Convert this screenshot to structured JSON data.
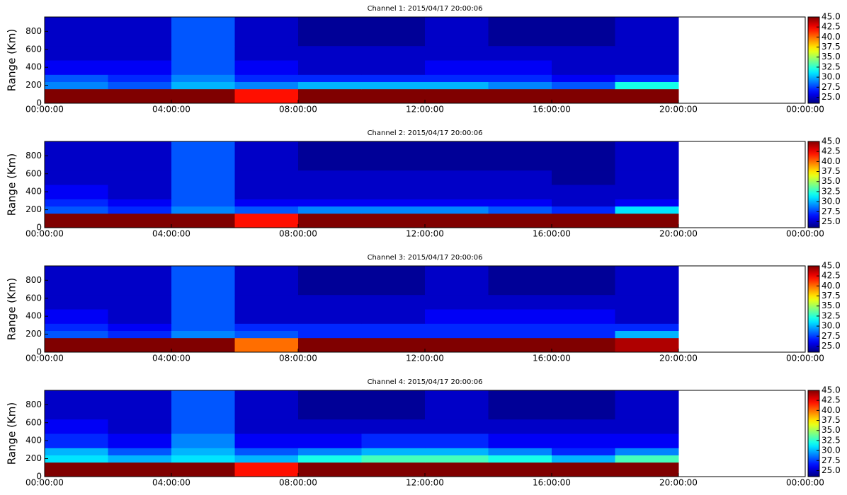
{
  "chart_data": [
    {
      "type": "heatmap",
      "title": "Channel 1: 2015/04/17 20:00:06",
      "ylabel": "Range (Km)",
      "colormap": "jet",
      "xbins": [
        0,
        2,
        4,
        6,
        8,
        10,
        12,
        14,
        16,
        18,
        20
      ],
      "ybins": [
        0,
        160,
        240,
        320,
        480,
        640,
        960
      ],
      "values": [
        [
          45,
          45,
          45,
          42,
          45,
          45,
          45,
          45,
          45,
          45
        ],
        [
          29,
          28,
          30,
          29,
          30,
          30,
          30,
          29,
          28,
          32
        ],
        [
          28,
          27,
          29,
          27,
          27,
          27,
          27,
          27,
          26,
          27
        ],
        [
          26,
          26,
          28,
          26,
          25,
          25,
          26,
          26,
          25,
          25
        ],
        [
          25,
          25,
          28,
          25,
          25,
          25,
          25,
          25,
          25,
          25
        ],
        [
          25,
          25,
          28,
          25,
          24,
          24,
          25,
          24,
          24,
          25
        ]
      ],
      "xlim": [
        0,
        24
      ],
      "xticks": [
        {
          "value": 0,
          "label": "00:00:00"
        },
        {
          "value": 4,
          "label": "04:00:00"
        },
        {
          "value": 8,
          "label": "08:00:00"
        },
        {
          "value": 12,
          "label": "12:00:00"
        },
        {
          "value": 16,
          "label": "16:00:00"
        },
        {
          "value": 20,
          "label": "20:00:00"
        },
        {
          "value": 24,
          "label": "00:00:00"
        }
      ],
      "ylim": [
        0,
        960
      ],
      "yticks": [
        0,
        200,
        400,
        600,
        800
      ],
      "clim": [
        23.5,
        45
      ],
      "cticks": [
        {
          "value": 25,
          "label": "25.0"
        },
        {
          "value": 27.5,
          "label": "27.5"
        },
        {
          "value": 30,
          "label": "30.0"
        },
        {
          "value": 32.5,
          "label": "32.5"
        },
        {
          "value": 35,
          "label": "35.0"
        },
        {
          "value": 37.5,
          "label": "37.5"
        },
        {
          "value": 40,
          "label": "40.0"
        },
        {
          "value": 42.5,
          "label": "42.5"
        },
        {
          "value": 45,
          "label": "45.0"
        }
      ]
    },
    {
      "type": "heatmap",
      "title": "Channel 2: 2015/04/17 20:00:06",
      "ylabel": "Range (Km)",
      "colormap": "jet",
      "xbins": [
        0,
        2,
        4,
        6,
        8,
        10,
        12,
        14,
        16,
        18,
        20
      ],
      "ybins": [
        0,
        160,
        240,
        320,
        480,
        640,
        960
      ],
      "values": [
        [
          45,
          45,
          45,
          42,
          45,
          45,
          45,
          45,
          45,
          45
        ],
        [
          28,
          27,
          29,
          28,
          29,
          29,
          29,
          28,
          27,
          31
        ],
        [
          27,
          26,
          28,
          26,
          26,
          26,
          26,
          26,
          25,
          26
        ],
        [
          26,
          25,
          28,
          25,
          25,
          25,
          25,
          25,
          25,
          25
        ],
        [
          25,
          25,
          28,
          25,
          25,
          25,
          25,
          25,
          24,
          25
        ],
        [
          25,
          25,
          28,
          25,
          24,
          24,
          24,
          24,
          24,
          25
        ]
      ],
      "xlim": [
        0,
        24
      ],
      "xticks": [
        {
          "value": 0,
          "label": "00:00:00"
        },
        {
          "value": 4,
          "label": "04:00:00"
        },
        {
          "value": 8,
          "label": "08:00:00"
        },
        {
          "value": 12,
          "label": "12:00:00"
        },
        {
          "value": 16,
          "label": "16:00:00"
        },
        {
          "value": 20,
          "label": "20:00:00"
        },
        {
          "value": 24,
          "label": "00:00:00"
        }
      ],
      "ylim": [
        0,
        960
      ],
      "yticks": [
        0,
        200,
        400,
        600,
        800
      ],
      "clim": [
        23.5,
        45
      ],
      "cticks": [
        {
          "value": 25,
          "label": "25.0"
        },
        {
          "value": 27.5,
          "label": "27.5"
        },
        {
          "value": 30,
          "label": "30.0"
        },
        {
          "value": 32.5,
          "label": "32.5"
        },
        {
          "value": 35,
          "label": "35.0"
        },
        {
          "value": 37.5,
          "label": "37.5"
        },
        {
          "value": 40,
          "label": "40.0"
        },
        {
          "value": 42.5,
          "label": "42.5"
        },
        {
          "value": 45,
          "label": "45.0"
        }
      ]
    },
    {
      "type": "heatmap",
      "title": "Channel 3: 2015/04/17 20:00:06",
      "ylabel": "Range (Km)",
      "colormap": "jet",
      "xbins": [
        0,
        2,
        4,
        6,
        8,
        10,
        12,
        14,
        16,
        18,
        20
      ],
      "ybins": [
        0,
        160,
        240,
        320,
        480,
        640,
        960
      ],
      "values": [
        [
          45,
          45,
          45,
          40,
          45,
          45,
          45,
          45,
          45,
          44
        ],
        [
          28,
          27,
          29,
          28,
          27,
          27,
          27,
          27,
          27,
          30
        ],
        [
          27,
          26,
          28,
          27,
          27,
          27,
          27,
          27,
          27,
          27
        ],
        [
          26,
          25,
          28,
          25,
          25,
          25,
          26,
          26,
          26,
          25
        ],
        [
          25,
          25,
          28,
          25,
          25,
          25,
          25,
          25,
          25,
          25
        ],
        [
          25,
          25,
          28,
          25,
          24,
          24,
          25,
          24,
          24,
          25
        ]
      ],
      "xlim": [
        0,
        24
      ],
      "xticks": [
        {
          "value": 0,
          "label": "00:00:00"
        },
        {
          "value": 4,
          "label": "04:00:00"
        },
        {
          "value": 8,
          "label": "08:00:00"
        },
        {
          "value": 12,
          "label": "12:00:00"
        },
        {
          "value": 16,
          "label": "16:00:00"
        },
        {
          "value": 20,
          "label": "20:00:00"
        },
        {
          "value": 24,
          "label": "00:00:00"
        }
      ],
      "ylim": [
        0,
        960
      ],
      "yticks": [
        0,
        200,
        400,
        600,
        800
      ],
      "clim": [
        23.5,
        45
      ],
      "cticks": [
        {
          "value": 25,
          "label": "25.0"
        },
        {
          "value": 27.5,
          "label": "27.5"
        },
        {
          "value": 30,
          "label": "30.0"
        },
        {
          "value": 32.5,
          "label": "32.5"
        },
        {
          "value": 35,
          "label": "35.0"
        },
        {
          "value": 37.5,
          "label": "37.5"
        },
        {
          "value": 40,
          "label": "40.0"
        },
        {
          "value": 42.5,
          "label": "42.5"
        },
        {
          "value": 45,
          "label": "45.0"
        }
      ]
    },
    {
      "type": "heatmap",
      "title": "Channel 4: 2015/04/17 20:00:06",
      "ylabel": "Range (Km)",
      "colormap": "jet",
      "xbins": [
        0,
        2,
        4,
        6,
        8,
        10,
        12,
        14,
        16,
        18,
        20
      ],
      "ybins": [
        0,
        160,
        240,
        320,
        480,
        640,
        960
      ],
      "values": [
        [
          45,
          45,
          45,
          42,
          45,
          45,
          45,
          45,
          45,
          45
        ],
        [
          31,
          30,
          31,
          30,
          32,
          33,
          33,
          32,
          30,
          33
        ],
        [
          30,
          28,
          30,
          28,
          29,
          30,
          30,
          29,
          27,
          29
        ],
        [
          27,
          26,
          29,
          26,
          26,
          27,
          27,
          26,
          26,
          26
        ],
        [
          26,
          25,
          28,
          25,
          25,
          25,
          25,
          25,
          25,
          25
        ],
        [
          25,
          25,
          28,
          25,
          24,
          24,
          25,
          24,
          24,
          25
        ]
      ],
      "xlim": [
        0,
        24
      ],
      "xticks": [
        {
          "value": 0,
          "label": "00:00:00"
        },
        {
          "value": 4,
          "label": "04:00:00"
        },
        {
          "value": 8,
          "label": "08:00:00"
        },
        {
          "value": 12,
          "label": "12:00:00"
        },
        {
          "value": 16,
          "label": "16:00:00"
        },
        {
          "value": 20,
          "label": "20:00:00"
        },
        {
          "value": 24,
          "label": "00:00:00"
        }
      ],
      "ylim": [
        0,
        960
      ],
      "yticks": [
        0,
        200,
        400,
        600,
        800
      ],
      "clim": [
        23.5,
        45
      ],
      "cticks": [
        {
          "value": 25,
          "label": "25.0"
        },
        {
          "value": 27.5,
          "label": "27.5"
        },
        {
          "value": 30,
          "label": "30.0"
        },
        {
          "value": 32.5,
          "label": "32.5"
        },
        {
          "value": 35,
          "label": "35.0"
        },
        {
          "value": 37.5,
          "label": "37.5"
        },
        {
          "value": 40,
          "label": "40.0"
        },
        {
          "value": 42.5,
          "label": "42.5"
        },
        {
          "value": 45,
          "label": "45.0"
        }
      ]
    }
  ]
}
